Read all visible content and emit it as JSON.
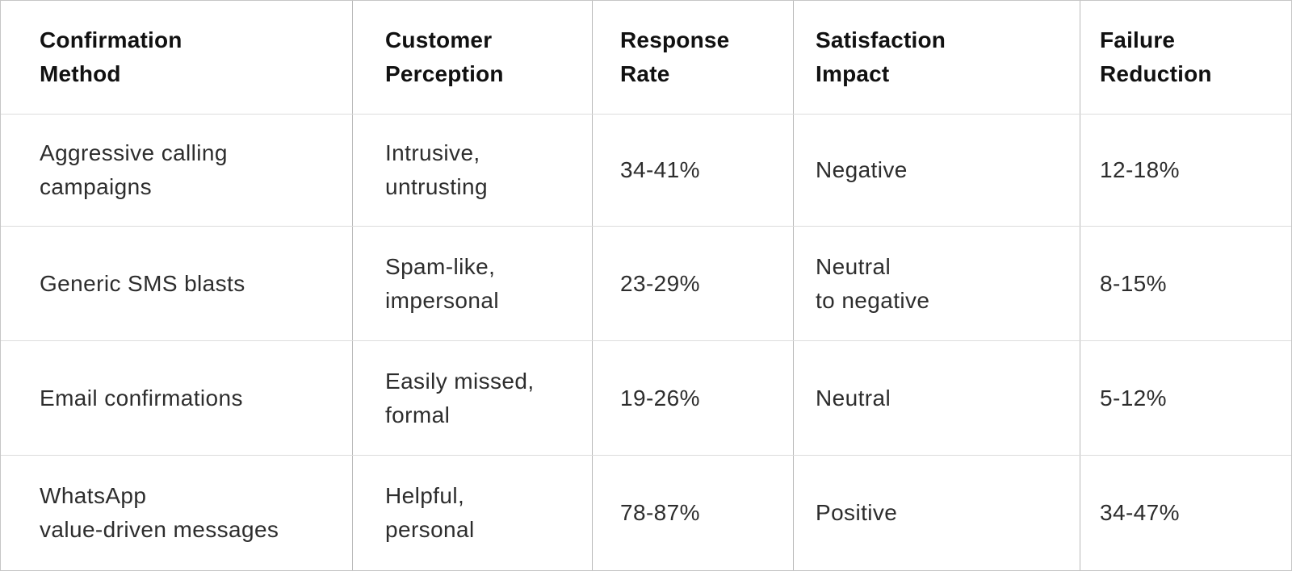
{
  "table": {
    "headers": {
      "confirmation_method": "Confirmation\nMethod",
      "customer_perception": "Customer\nPerception",
      "response_rate": "Response\nRate",
      "satisfaction_impact": "Satisfaction\nImpact",
      "failure_reduction": "Failure\nReduction"
    },
    "rows": [
      {
        "method": "Aggressive calling\ncampaigns",
        "perception": "Intrusive,\nuntrusting",
        "response_rate": "34-41%",
        "satisfaction_impact": "Negative",
        "failure_reduction": "12-18%"
      },
      {
        "method": "Generic SMS blasts",
        "perception": "Spam-like,\nimpersonal",
        "response_rate": "23-29%",
        "satisfaction_impact": "Neutral\nto negative",
        "failure_reduction": "8-15%"
      },
      {
        "method": "Email confirmations",
        "perception": "Easily missed,\nformal",
        "response_rate": "19-26%",
        "satisfaction_impact": "Neutral",
        "failure_reduction": "5-12%"
      },
      {
        "method": "WhatsApp\nvalue-driven messages",
        "perception": "Helpful,\npersonal",
        "response_rate": "78-87%",
        "satisfaction_impact": "Positive",
        "failure_reduction": "34-47%"
      }
    ]
  },
  "colors": {
    "background": "#ffffff",
    "outer_border": "#c6c6c6",
    "vertical_divider": "#b9b9b9",
    "horizontal_divider": "#dcdcdc",
    "header_text": "#111111",
    "body_text": "#2d2d2d"
  }
}
